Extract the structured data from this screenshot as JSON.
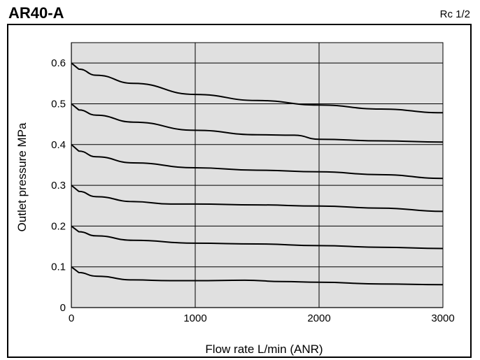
{
  "header": {
    "title": "AR40-A",
    "subtitle": "Rc 1/2"
  },
  "chart_data": {
    "type": "line",
    "xlabel": "Flow rate L/min (ANR)",
    "ylabel": "Outlet pressure MPa",
    "xlim": [
      0,
      3000
    ],
    "ylim": [
      0,
      0.65
    ],
    "x_ticks": [
      0,
      1000,
      2000,
      3000
    ],
    "y_ticks": [
      0,
      0.1,
      0.2,
      0.3,
      0.4,
      0.5,
      0.6
    ],
    "x_tick_labels": [
      "0",
      "1000",
      "2000",
      "3000"
    ],
    "y_tick_labels": [
      "0",
      "0.1",
      "0.2",
      "0.3",
      "0.4",
      "0.5",
      "0.6"
    ],
    "grid": true,
    "plot_background": "#e0e0e0",
    "line_color": "#000000",
    "series": [
      {
        "x": [
          0,
          60,
          200,
          500,
          1000,
          1500,
          2000,
          2500,
          3000
        ],
        "values": [
          0.6,
          0.585,
          0.57,
          0.55,
          0.523,
          0.508,
          0.497,
          0.487,
          0.478
        ]
      },
      {
        "x": [
          0,
          60,
          200,
          500,
          1000,
          1500,
          1800,
          2000,
          2500,
          3000
        ],
        "values": [
          0.5,
          0.485,
          0.472,
          0.455,
          0.435,
          0.424,
          0.423,
          0.413,
          0.409,
          0.406
        ]
      },
      {
        "x": [
          0,
          60,
          200,
          500,
          1000,
          1500,
          2000,
          2500,
          3000
        ],
        "values": [
          0.4,
          0.384,
          0.37,
          0.355,
          0.343,
          0.337,
          0.333,
          0.326,
          0.317
        ]
      },
      {
        "x": [
          0,
          60,
          200,
          500,
          800,
          1000,
          1500,
          2000,
          2500,
          3000
        ],
        "values": [
          0.3,
          0.285,
          0.272,
          0.26,
          0.254,
          0.254,
          0.252,
          0.249,
          0.244,
          0.236
        ]
      },
      {
        "x": [
          0,
          60,
          200,
          500,
          1000,
          1500,
          2000,
          2500,
          3000
        ],
        "values": [
          0.2,
          0.186,
          0.176,
          0.165,
          0.158,
          0.156,
          0.152,
          0.148,
          0.145
        ]
      },
      {
        "x": [
          0,
          60,
          200,
          500,
          800,
          1000,
          1400,
          1700,
          2000,
          2500,
          3000
        ],
        "values": [
          0.1,
          0.086,
          0.077,
          0.068,
          0.066,
          0.066,
          0.067,
          0.064,
          0.062,
          0.058,
          0.056
        ]
      }
    ]
  }
}
